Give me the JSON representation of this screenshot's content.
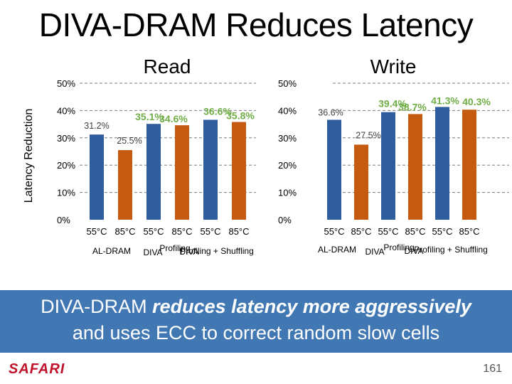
{
  "slide": {
    "title": "DIVA-DRAM Reduces Latency",
    "banner_line1_prefix": "DIVA-DRAM ",
    "banner_line1_emphasis": "reduces latency more aggressively",
    "banner_line2": "and uses ECC to correct random slow cells",
    "logo": "SAFARI",
    "page_number": "161"
  },
  "chart_data": [
    {
      "type": "bar",
      "title": "Read",
      "ylabel": "Latency Reduction",
      "ylim": [
        0,
        50
      ],
      "yticks": [
        "0%",
        "10%",
        "20%",
        "30%",
        "40%",
        "50%"
      ],
      "grid": "horizontal-dashed",
      "categories": [
        "55°C",
        "85°C",
        "55°C",
        "85°C",
        "55°C",
        "85°C"
      ],
      "groups": [
        "AL-DRAM",
        "DIVA Profiling",
        "DIVA Profiling + Shuffling"
      ],
      "group_labels_rendered": [
        "AL-DRAM",
        "DIVA",
        "Profiling",
        "DIVA",
        "Profiling + Shuffling"
      ],
      "values": [
        31.2,
        25.5,
        35.1,
        34.6,
        36.6,
        35.8
      ],
      "value_labels": [
        "31.2%",
        "25.5%",
        "35.1%",
        "34.6%",
        "36.6%",
        "35.8%"
      ],
      "colors": [
        "#2e5c9c",
        "#c55a11",
        "#2e5c9c",
        "#c55a11",
        "#2e5c9c",
        "#c55a11"
      ]
    },
    {
      "type": "bar",
      "title": "Write",
      "ylim": [
        0,
        50
      ],
      "yticks": [
        "0%",
        "10%",
        "20%",
        "30%",
        "40%",
        "50%"
      ],
      "grid": "horizontal-dashed",
      "categories": [
        "55°C",
        "85°C",
        "55°C",
        "85°C",
        "55°C",
        "85°C"
      ],
      "groups": [
        "AL-DRAM",
        "DIVA Profiling",
        "DIVA Profiling + Shuffling"
      ],
      "group_labels_rendered": [
        "AL-DRAM",
        "DIVA",
        "Profiling",
        "DIVA",
        "Profiling + Shuffling"
      ],
      "values": [
        36.6,
        27.5,
        39.4,
        38.7,
        41.3,
        40.3
      ],
      "value_labels": [
        "36.6%",
        "27.5%",
        "39.4%",
        "38.7%",
        "41.3%",
        "40.3%"
      ],
      "colors": [
        "#2e5c9c",
        "#c55a11",
        "#2e5c9c",
        "#c55a11",
        "#2e5c9c",
        "#c55a11"
      ]
    }
  ]
}
